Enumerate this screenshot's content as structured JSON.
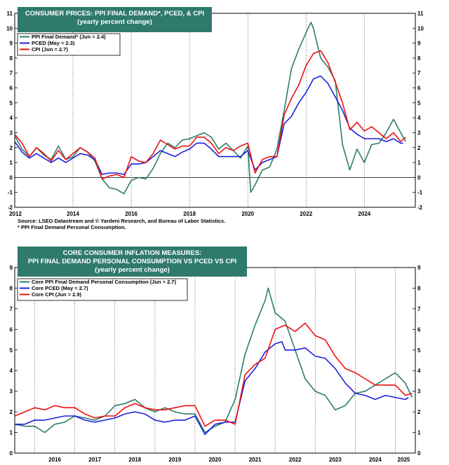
{
  "colors": {
    "ppi": "#2e7d6b",
    "pced": "#1f1fe0",
    "cpi": "#ee1111",
    "title_bg": "#2f7a6c"
  },
  "chart_data": [
    {
      "type": "line",
      "title_lines": [
        "CONSUMER PRICES: PPI FINAL DEMAND*, PCED, & CPI",
        "(yearly percent change)"
      ],
      "ylim": [
        -2,
        11
      ],
      "yticks": [
        -2,
        -1,
        0,
        1,
        2,
        3,
        4,
        5,
        6,
        7,
        8,
        9,
        10,
        11
      ],
      "xlim": [
        2012,
        2025.75
      ],
      "xticks": [
        2012,
        2014,
        2016,
        2018,
        2020,
        2022,
        2024
      ],
      "xtick_labels": [
        "2012",
        "2014",
        "2016",
        "2018",
        "2020",
        "2022",
        "2024"
      ],
      "xtick_pos": "bottom",
      "zero_line": true,
      "series": [
        {
          "name": "PPI Final Demand* (Jun = 2.4)",
          "color_key": "ppi",
          "x": [
            2012.0,
            2012.25,
            2012.5,
            2012.75,
            2013.0,
            2013.25,
            2013.5,
            2013.75,
            2014.0,
            2014.25,
            2014.5,
            2014.75,
            2015.0,
            2015.25,
            2015.5,
            2015.75,
            2016.0,
            2016.25,
            2016.5,
            2016.75,
            2017.0,
            2017.25,
            2017.5,
            2017.75,
            2018.0,
            2018.25,
            2018.5,
            2018.75,
            2019.0,
            2019.25,
            2019.5,
            2019.75,
            2020.0,
            2020.1,
            2020.25,
            2020.5,
            2020.75,
            2021.0,
            2021.25,
            2021.5,
            2021.75,
            2022.0,
            2022.17,
            2022.25,
            2022.5,
            2022.75,
            2023.0,
            2023.25,
            2023.5,
            2023.75,
            2024.0,
            2024.25,
            2024.5,
            2024.75,
            2025.0,
            2025.25,
            2025.42
          ],
          "values": [
            2.8,
            1.9,
            1.4,
            2.0,
            1.5,
            1.2,
            2.1,
            1.2,
            1.4,
            2.0,
            1.7,
            1.1,
            -0.1,
            -0.7,
            -0.8,
            -1.1,
            -0.2,
            0.0,
            -0.1,
            0.6,
            1.6,
            2.3,
            2.0,
            2.5,
            2.6,
            2.8,
            3.0,
            2.7,
            1.9,
            2.3,
            1.8,
            1.3,
            2.1,
            -1.0,
            -0.5,
            0.5,
            0.7,
            1.9,
            4.5,
            7.3,
            8.6,
            9.7,
            10.4,
            10.0,
            8.0,
            7.4,
            6.5,
            2.2,
            0.5,
            1.9,
            1.0,
            2.2,
            2.3,
            3.0,
            3.9,
            3.0,
            2.4
          ]
        },
        {
          "name": "PCED (May = 2.3)",
          "color_key": "pced",
          "x": [
            2012.0,
            2012.25,
            2012.5,
            2012.75,
            2013.0,
            2013.25,
            2013.5,
            2013.75,
            2014.0,
            2014.25,
            2014.5,
            2014.75,
            2015.0,
            2015.25,
            2015.5,
            2015.75,
            2016.0,
            2016.25,
            2016.5,
            2016.75,
            2017.0,
            2017.25,
            2017.5,
            2017.75,
            2018.0,
            2018.25,
            2018.5,
            2018.75,
            2019.0,
            2019.25,
            2019.5,
            2019.75,
            2020.0,
            2020.25,
            2020.5,
            2020.75,
            2021.0,
            2021.25,
            2021.5,
            2021.75,
            2022.0,
            2022.25,
            2022.5,
            2022.75,
            2023.0,
            2023.25,
            2023.5,
            2023.75,
            2024.0,
            2024.25,
            2024.5,
            2024.75,
            2025.0,
            2025.25,
            2025.33
          ],
          "values": [
            2.4,
            1.7,
            1.3,
            1.6,
            1.3,
            1.0,
            1.3,
            1.0,
            1.3,
            1.6,
            1.5,
            1.2,
            0.2,
            0.3,
            0.3,
            0.2,
            0.9,
            0.9,
            1.0,
            1.4,
            1.8,
            1.6,
            1.4,
            1.7,
            1.9,
            2.3,
            2.3,
            1.9,
            1.4,
            1.4,
            1.4,
            1.4,
            1.8,
            0.5,
            1.0,
            1.2,
            1.4,
            3.6,
            4.1,
            5.0,
            5.7,
            6.6,
            6.8,
            6.3,
            5.4,
            4.5,
            3.3,
            2.9,
            2.6,
            2.6,
            2.6,
            2.4,
            2.6,
            2.3,
            2.3
          ]
        },
        {
          "name": "CPI (Jun = 2.7)",
          "color_key": "cpi",
          "x": [
            2012.0,
            2012.25,
            2012.5,
            2012.75,
            2013.0,
            2013.25,
            2013.5,
            2013.75,
            2014.0,
            2014.25,
            2014.5,
            2014.75,
            2015.0,
            2015.25,
            2015.5,
            2015.75,
            2016.0,
            2016.25,
            2016.5,
            2016.75,
            2017.0,
            2017.25,
            2017.5,
            2017.75,
            2018.0,
            2018.25,
            2018.5,
            2018.75,
            2019.0,
            2019.25,
            2019.5,
            2019.75,
            2020.0,
            2020.25,
            2020.5,
            2020.75,
            2021.0,
            2021.25,
            2021.5,
            2021.75,
            2022.0,
            2022.25,
            2022.5,
            2022.75,
            2023.0,
            2023.25,
            2023.5,
            2023.75,
            2024.0,
            2024.25,
            2024.5,
            2024.75,
            2025.0,
            2025.25,
            2025.42
          ],
          "values": [
            2.9,
            2.3,
            1.4,
            2.0,
            1.6,
            1.1,
            1.8,
            1.2,
            1.6,
            2.0,
            1.7,
            1.3,
            -0.1,
            0.1,
            0.2,
            0.0,
            1.4,
            1.1,
            1.0,
            1.6,
            2.5,
            2.2,
            1.9,
            2.1,
            2.1,
            2.7,
            2.7,
            2.3,
            1.6,
            2.0,
            1.8,
            2.1,
            2.3,
            0.3,
            1.2,
            1.4,
            1.4,
            4.2,
            5.3,
            6.2,
            7.5,
            8.3,
            8.5,
            7.7,
            6.4,
            5.0,
            3.2,
            3.7,
            3.1,
            3.4,
            3.0,
            2.6,
            3.0,
            2.4,
            2.7
          ]
        }
      ],
      "source_lines": [
        "Source: LSEG Datastream and © Yardeni Research, and Bureau of Labor Statistics.",
        "* PPI Final Demand Personal Consumption."
      ]
    },
    {
      "type": "line",
      "title_lines": [
        "CORE CONSUMER  INFLATION MEASURES:",
        "PPI FINAL DEMAND PERSONAL CONSUMPTION VS PCED VS CPI",
        "(yearly percent change)"
      ],
      "ylim": [
        0,
        9
      ],
      "yticks": [
        0,
        1,
        2,
        3,
        4,
        5,
        6,
        7,
        8,
        9
      ],
      "xlim": [
        2015.5,
        2025.5
      ],
      "xticks": [
        2016,
        2017,
        2018,
        2019,
        2020,
        2021,
        2022,
        2023,
        2024,
        2025
      ],
      "xtick_labels": [
        "2016",
        "2017",
        "2018",
        "2019",
        "2020",
        "2021",
        "2022",
        "2023",
        "2024",
        "2025"
      ],
      "xtick_pos": "mid",
      "zero_line": false,
      "series": [
        {
          "name": "Core PPI Final Demand Personal Consumption (Jun = 2.7)",
          "color_key": "ppi",
          "x": [
            2015.5,
            2015.75,
            2016.0,
            2016.25,
            2016.5,
            2016.75,
            2017.0,
            2017.25,
            2017.5,
            2017.75,
            2018.0,
            2018.25,
            2018.5,
            2018.75,
            2019.0,
            2019.25,
            2019.5,
            2019.75,
            2020.0,
            2020.25,
            2020.5,
            2020.75,
            2021.0,
            2021.25,
            2021.5,
            2021.75,
            2021.83,
            2022.0,
            2022.25,
            2022.5,
            2022.75,
            2023.0,
            2023.25,
            2023.5,
            2023.75,
            2024.0,
            2024.25,
            2024.5,
            2024.75,
            2025.0,
            2025.25,
            2025.42
          ],
          "values": [
            1.4,
            1.3,
            1.3,
            1.0,
            1.4,
            1.5,
            1.8,
            1.7,
            1.6,
            1.8,
            2.3,
            2.4,
            2.6,
            2.2,
            2.0,
            2.2,
            2.0,
            1.9,
            1.9,
            1.0,
            1.3,
            1.5,
            2.6,
            4.8,
            6.2,
            7.4,
            8.0,
            6.8,
            6.4,
            5.0,
            3.6,
            3.0,
            2.8,
            2.1,
            2.3,
            2.9,
            3.0,
            3.3,
            3.6,
            3.9,
            3.4,
            2.7
          ]
        },
        {
          "name": "Core PCED (May = 2.7)",
          "color_key": "pced",
          "x": [
            2015.5,
            2015.75,
            2016.0,
            2016.25,
            2016.5,
            2016.75,
            2017.0,
            2017.25,
            2017.5,
            2017.75,
            2018.0,
            2018.25,
            2018.5,
            2018.75,
            2019.0,
            2019.25,
            2019.5,
            2019.75,
            2020.0,
            2020.25,
            2020.5,
            2020.75,
            2021.0,
            2021.25,
            2021.5,
            2021.75,
            2022.0,
            2022.17,
            2022.25,
            2022.5,
            2022.75,
            2023.0,
            2023.25,
            2023.5,
            2023.75,
            2024.0,
            2024.25,
            2024.5,
            2024.75,
            2025.0,
            2025.25,
            2025.33
          ],
          "values": [
            1.4,
            1.4,
            1.6,
            1.6,
            1.7,
            1.8,
            1.8,
            1.6,
            1.5,
            1.6,
            1.7,
            1.9,
            2.0,
            1.9,
            1.6,
            1.5,
            1.6,
            1.6,
            1.8,
            0.9,
            1.4,
            1.5,
            1.5,
            3.5,
            4.1,
            4.9,
            5.3,
            5.4,
            5.0,
            5.0,
            5.1,
            4.7,
            4.6,
            4.1,
            3.4,
            2.9,
            2.8,
            2.6,
            2.8,
            2.7,
            2.6,
            2.7
          ]
        },
        {
          "name": "Core CPI (Jun = 2.9)",
          "color_key": "cpi",
          "x": [
            2015.5,
            2015.75,
            2016.0,
            2016.25,
            2016.5,
            2016.75,
            2017.0,
            2017.25,
            2017.5,
            2017.75,
            2018.0,
            2018.25,
            2018.5,
            2018.75,
            2019.0,
            2019.25,
            2019.5,
            2019.75,
            2020.0,
            2020.25,
            2020.5,
            2020.75,
            2021.0,
            2021.25,
            2021.5,
            2021.75,
            2022.0,
            2022.25,
            2022.5,
            2022.75,
            2023.0,
            2023.25,
            2023.5,
            2023.75,
            2024.0,
            2024.25,
            2024.5,
            2024.75,
            2025.0,
            2025.25,
            2025.42
          ],
          "values": [
            1.8,
            2.0,
            2.2,
            2.1,
            2.3,
            2.2,
            2.2,
            1.9,
            1.7,
            1.8,
            1.8,
            2.2,
            2.4,
            2.2,
            2.1,
            2.1,
            2.2,
            2.3,
            2.3,
            1.3,
            1.6,
            1.6,
            1.4,
            3.8,
            4.3,
            4.6,
            6.0,
            6.2,
            5.9,
            6.3,
            5.7,
            5.5,
            4.7,
            4.1,
            3.9,
            3.6,
            3.3,
            3.3,
            3.3,
            2.8,
            2.9
          ]
        }
      ],
      "source_lines": []
    }
  ]
}
